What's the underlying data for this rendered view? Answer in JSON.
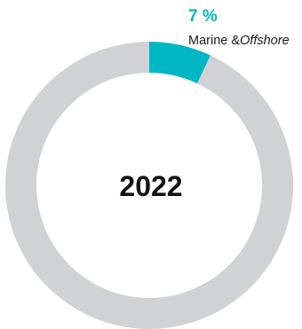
{
  "chart_data": {
    "type": "pie",
    "donut": true,
    "center_label": "2022",
    "slices": [
      {
        "label": "Marine & Offshore",
        "value": 7,
        "color": "#00b7c3",
        "value_label": "7 %",
        "label_parts": [
          "Marine &",
          "Offshore"
        ]
      },
      {
        "label": "",
        "value": 93,
        "color": "#d1d2d4"
      }
    ]
  }
}
